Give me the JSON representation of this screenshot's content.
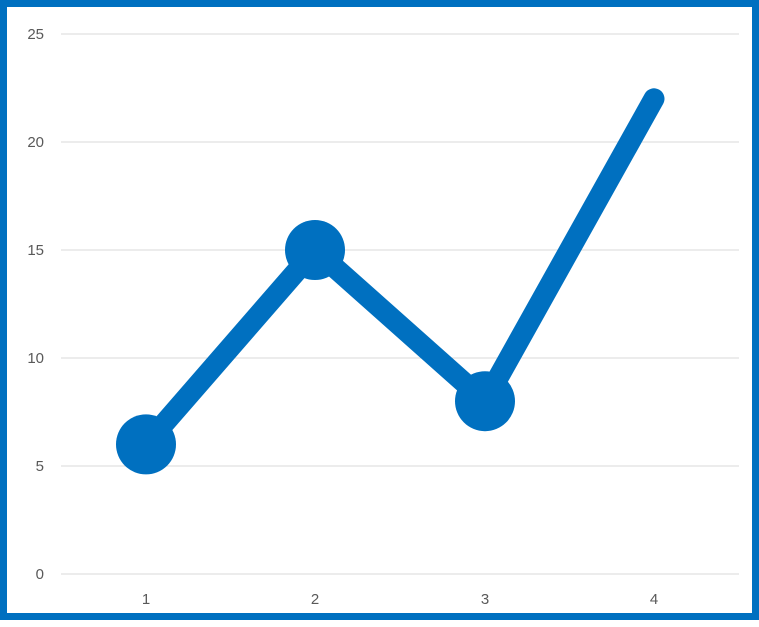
{
  "chart_data": {
    "type": "line",
    "title": "",
    "xlabel": "",
    "ylabel": "",
    "x": [
      1,
      2,
      3,
      4
    ],
    "series": [
      {
        "values": [
          6,
          15,
          8,
          22
        ],
        "markers": [
          true,
          true,
          true,
          false
        ],
        "color": "#0070C0"
      }
    ],
    "ylim": [
      0,
      25
    ],
    "yticks": [
      0,
      5,
      10,
      15,
      20,
      25
    ],
    "xtick_labels": [
      "1",
      "2",
      "3",
      "4"
    ],
    "ytick_labels": [
      "0",
      "5",
      "10",
      "15",
      "20",
      "25"
    ],
    "grid": true,
    "legend": "none",
    "colors": {
      "border": "#0070C0",
      "line": "#0070C0",
      "gridline": "#D9D9D9",
      "tick_text": "#595959"
    }
  }
}
